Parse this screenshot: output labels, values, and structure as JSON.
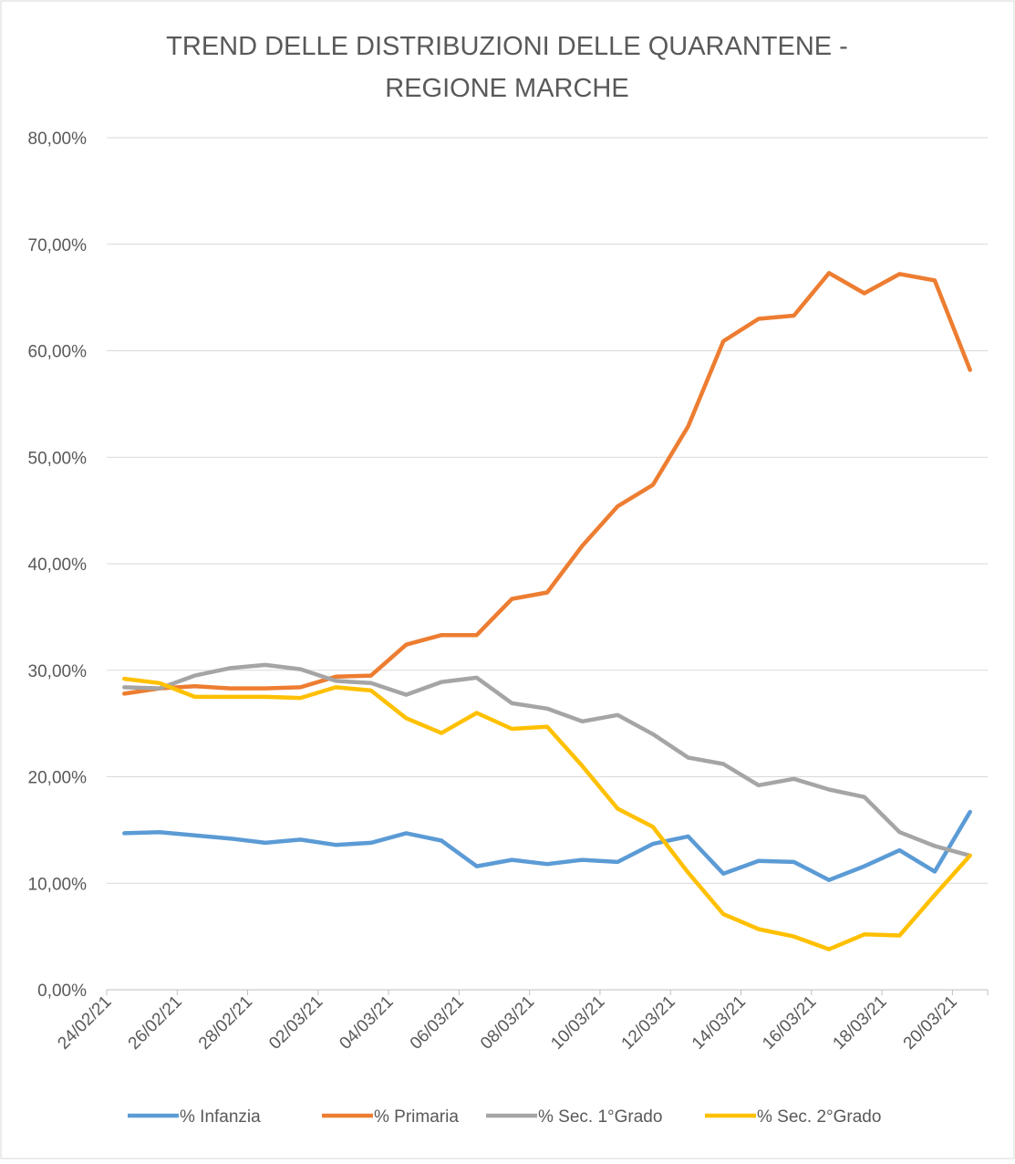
{
  "chart_data": {
    "type": "line",
    "title": [
      "TREND DELLE DISTRIBUZIONI DELLE QUARANTENE -",
      "REGIONE MARCHE"
    ],
    "categories": [
      "24/02/21",
      null,
      "26/02/21",
      null,
      "28/02/21",
      null,
      "02/03/21",
      null,
      "04/03/21",
      null,
      "06/03/21",
      null,
      "08/03/21",
      null,
      "10/03/21",
      null,
      "12/03/21",
      null,
      "14/03/21",
      null,
      "16/03/21",
      null,
      "18/03/21",
      null,
      "20/03/21"
    ],
    "series": [
      {
        "name": "% Infanzia",
        "color": "#5b9bd5",
        "values": [
          14.7,
          14.8,
          14.5,
          14.2,
          13.8,
          14.1,
          13.6,
          13.8,
          14.7,
          14.0,
          11.6,
          12.2,
          11.8,
          12.2,
          12.0,
          13.7,
          14.4,
          10.9,
          12.1,
          12.0,
          10.3,
          11.6,
          13.1,
          11.1,
          16.7
        ]
      },
      {
        "name": "% Primaria",
        "color": "#ed7d31",
        "values": [
          27.8,
          28.3,
          28.5,
          28.3,
          28.3,
          28.4,
          29.4,
          29.5,
          32.4,
          33.3,
          33.3,
          36.7,
          37.3,
          41.7,
          45.4,
          47.4,
          52.9,
          60.9,
          63.0,
          63.3,
          67.3,
          65.4,
          67.2,
          66.6,
          58.2
        ]
      },
      {
        "name": "% Sec. 1°Grado",
        "color": "#a5a5a5",
        "values": [
          28.4,
          28.3,
          29.5,
          30.2,
          30.5,
          30.1,
          29.0,
          28.8,
          27.7,
          28.9,
          29.3,
          26.9,
          26.4,
          25.2,
          25.8,
          24.0,
          21.8,
          21.2,
          19.2,
          19.8,
          18.8,
          18.1,
          14.8,
          13.5,
          12.6
        ]
      },
      {
        "name": "% Sec. 2°Grado",
        "color": "#ffc000",
        "values": [
          29.2,
          28.8,
          27.5,
          27.5,
          27.5,
          27.4,
          28.4,
          28.1,
          25.5,
          24.1,
          26.0,
          24.5,
          24.7,
          21.0,
          17.0,
          15.3,
          11.0,
          7.1,
          5.7,
          5.0,
          3.8,
          5.2,
          5.1,
          8.9,
          12.6
        ]
      }
    ],
    "ylim": [
      0,
      80
    ],
    "yticks": [
      {
        "value": 0,
        "label": "0,00%"
      },
      {
        "value": 10,
        "label": "10,00%"
      },
      {
        "value": 20,
        "label": "20,00%"
      },
      {
        "value": 30,
        "label": "30,00%"
      },
      {
        "value": 40,
        "label": "40,00%"
      },
      {
        "value": 50,
        "label": "50,00%"
      },
      {
        "value": 60,
        "label": "60,00%"
      },
      {
        "value": 70,
        "label": "70,00%"
      },
      {
        "value": 80,
        "label": "80,00%"
      }
    ],
    "grid": true,
    "legend": "bottom"
  }
}
